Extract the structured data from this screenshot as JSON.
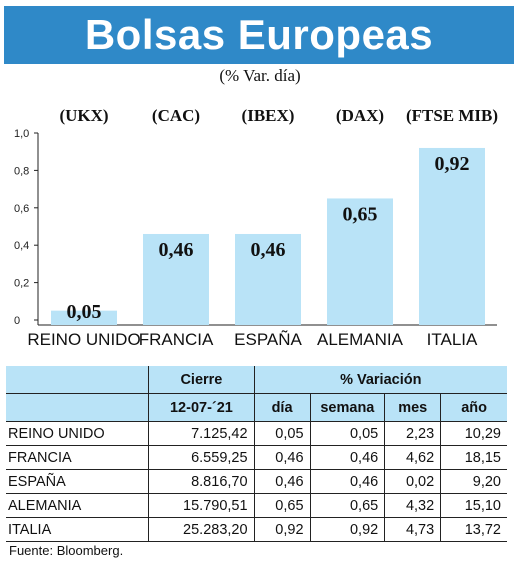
{
  "title": "Bolsas Europeas",
  "subtitle": "(% Var. día)",
  "colors": {
    "title_bg": "#2f89c8",
    "bar": "#b9e3f7",
    "header_bg": "#b9e3f7"
  },
  "chart_data": {
    "type": "bar",
    "categories": [
      "REINO UNIDO",
      "FRANCIA",
      "ESPAÑA",
      "ALEMANIA",
      "ITALIA"
    ],
    "tickers": [
      "(UKX)",
      "(CAC)",
      "(IBEX)",
      "(DAX)",
      "(FTSE MIB)"
    ],
    "values": [
      0.05,
      0.46,
      0.46,
      0.65,
      0.92
    ],
    "value_labels": [
      "0,05",
      "0,46",
      "0,46",
      "0,65",
      "0,92"
    ],
    "ylim": [
      0,
      1.0
    ],
    "yticks": [
      0,
      0.2,
      0.4,
      0.6,
      0.8,
      1.0
    ],
    "ytick_labels": [
      "0",
      "0,2",
      "0,4",
      "0,6",
      "0,8",
      "1,0"
    ],
    "grid": false
  },
  "table": {
    "header_cierre": "Cierre",
    "header_variacion": "% Variación",
    "date": "12-07-´21",
    "sub_headers": [
      "día",
      "semana",
      "mes",
      "año"
    ],
    "rows": [
      {
        "country": "REINO UNIDO",
        "cierre": "7.125,42",
        "dia": "0,05",
        "semana": "0,05",
        "mes": "2,23",
        "anio": "10,29"
      },
      {
        "country": "FRANCIA",
        "cierre": "6.559,25",
        "dia": "0,46",
        "semana": "0,46",
        "mes": "4,62",
        "anio": "18,15"
      },
      {
        "country": "ESPAÑA",
        "cierre": "8.816,70",
        "dia": "0,46",
        "semana": "0,46",
        "mes": "0,02",
        "anio": "9,20"
      },
      {
        "country": "ALEMANIA",
        "cierre": "15.790,51",
        "dia": "0,65",
        "semana": "0,65",
        "mes": "4,32",
        "anio": "15,10"
      },
      {
        "country": "ITALIA",
        "cierre": "25.283,20",
        "dia": "0,92",
        "semana": "0,92",
        "mes": "4,73",
        "anio": "13,72"
      }
    ]
  },
  "source": "Fuente: Bloomberg."
}
